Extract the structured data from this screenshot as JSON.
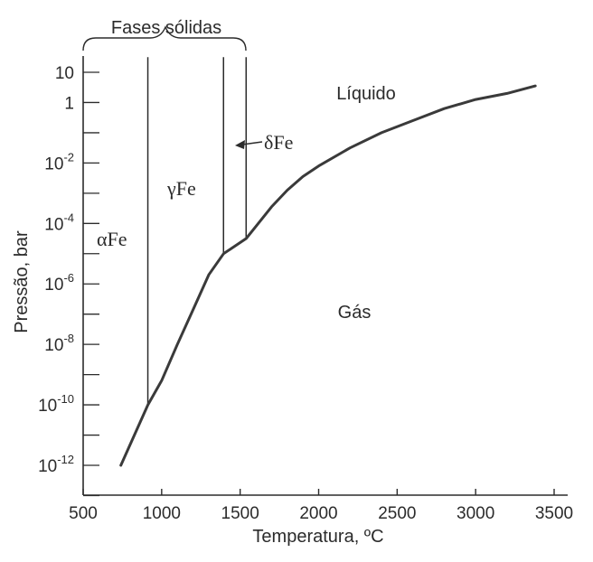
{
  "chart_data": {
    "type": "line",
    "title": "",
    "xlabel": "Temperatura, ºC",
    "ylabel": "Pressão, bar",
    "xlim": [
      500,
      3500
    ],
    "ylim_log10": [
      -13,
      1.5
    ],
    "y_scale": "log",
    "grid": false,
    "x_ticks": [
      500,
      1000,
      1500,
      2000,
      2500,
      3000,
      3500
    ],
    "y_ticks": [
      {
        "log10": 1,
        "base": "10",
        "exp": ""
      },
      {
        "log10": 0,
        "base": "1",
        "exp": ""
      },
      {
        "log10": -2,
        "base": "10",
        "exp": "-2"
      },
      {
        "log10": -4,
        "base": "10",
        "exp": "-4"
      },
      {
        "log10": -6,
        "base": "10",
        "exp": "-6"
      },
      {
        "log10": -8,
        "base": "10",
        "exp": "-8"
      },
      {
        "log10": -10,
        "base": "10",
        "exp": "-10"
      },
      {
        "log10": -12,
        "base": "10",
        "exp": "-12"
      }
    ],
    "boundary_curve": {
      "x": [
        740,
        912,
        1000,
        1100,
        1200,
        1300,
        1394,
        1538,
        1600,
        1700,
        1800,
        1900,
        2000,
        2200,
        2400,
        2600,
        2800,
        3000,
        3200,
        3380
      ],
      "log10_p": [
        -12.0,
        -10.0,
        -9.2,
        -8.0,
        -6.85,
        -5.7,
        -5.0,
        -4.5,
        -4.1,
        -3.45,
        -2.9,
        -2.45,
        -2.1,
        -1.5,
        -1.0,
        -0.6,
        -0.2,
        0.1,
        0.3,
        0.55
      ]
    },
    "phase_boundaries": [
      {
        "x": 912,
        "log10_p_from": -10.0,
        "log10_p_to": 1.5
      },
      {
        "x": 1394,
        "log10_p_from": -5.0,
        "log10_p_to": 1.5
      },
      {
        "x": 1538,
        "log10_p_from": -4.5,
        "log10_p_to": 1.5
      }
    ],
    "annotations": {
      "brace_label": "Fases sólidas",
      "liquid": "Líquido",
      "gas": "Gás",
      "alpha": "αFe",
      "gamma": "γFe",
      "delta": "δFe"
    }
  }
}
